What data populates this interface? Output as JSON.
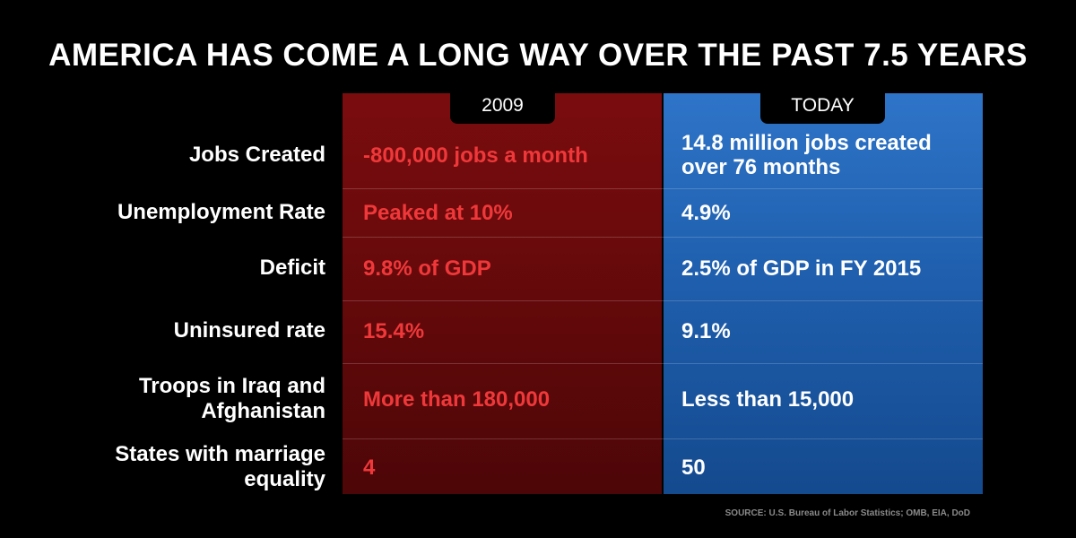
{
  "title": "AMERICA HAS COME A LONG WAY OVER THE PAST 7.5 YEARS",
  "columns": {
    "left": "2009",
    "right": "TODAY"
  },
  "rows": [
    {
      "label": "Jobs Created",
      "then": "-800,000 jobs a month",
      "now": "14.8 million jobs created over 76 months"
    },
    {
      "label": "Unemployment Rate",
      "then": "Peaked at 10%",
      "now": "4.9%"
    },
    {
      "label": "Deficit",
      "then": "9.8% of GDP",
      "now": "2.5% of GDP in FY 2015"
    },
    {
      "label": "Uninsured rate",
      "then": "15.4%",
      "now": "9.1%"
    },
    {
      "label": "Troops in Iraq and Afghanistan",
      "then": "More than 180,000",
      "now": "Less than 15,000"
    },
    {
      "label": "States with marriage equality",
      "then": "4",
      "now": "50"
    }
  ],
  "source": "SOURCE: U.S. Bureau of Labor Statistics; OMB, EIA, DoD",
  "colors": {
    "red_column": "#6b0a0c",
    "red_text": "#f0383a",
    "blue_column": "#1f5fae",
    "background": "#000000"
  }
}
